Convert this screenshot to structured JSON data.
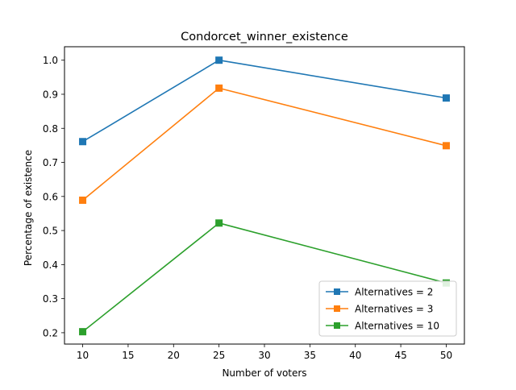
{
  "chart_data": {
    "type": "line",
    "title": "Condorcet_winner_existence",
    "xlabel": "Number of voters",
    "ylabel": "Percentage of existence",
    "x": [
      10,
      25,
      50
    ],
    "xlim": [
      7.999,
      52.0
    ],
    "ylim": [
      0.1667,
      1.0395
    ],
    "xticks": [
      10,
      15,
      20,
      25,
      30,
      35,
      40,
      45,
      50
    ],
    "xtick_labels": [
      "10",
      "15",
      "20",
      "25",
      "30",
      "35",
      "40",
      "45",
      "50"
    ],
    "yticks": [
      0.2,
      0.3,
      0.4,
      0.5,
      0.6,
      0.7,
      0.8,
      0.9,
      1.0
    ],
    "ytick_labels": [
      "0.2",
      "0.3",
      "0.4",
      "0.5",
      "0.6",
      "0.7",
      "0.8",
      "0.9",
      "1.0"
    ],
    "grid": false,
    "legend_position": "bottom-right",
    "marker": "square",
    "series": [
      {
        "name": "Alternatives = 2",
        "color": "#1f77b4",
        "values": [
          0.761,
          1.0,
          0.889
        ]
      },
      {
        "name": "Alternatives = 3",
        "color": "#ff7f0e",
        "values": [
          0.589,
          0.918,
          0.749
        ]
      },
      {
        "name": "Alternatives = 10",
        "color": "#2ca02c",
        "values": [
          0.203,
          0.522,
          0.346
        ]
      }
    ]
  }
}
